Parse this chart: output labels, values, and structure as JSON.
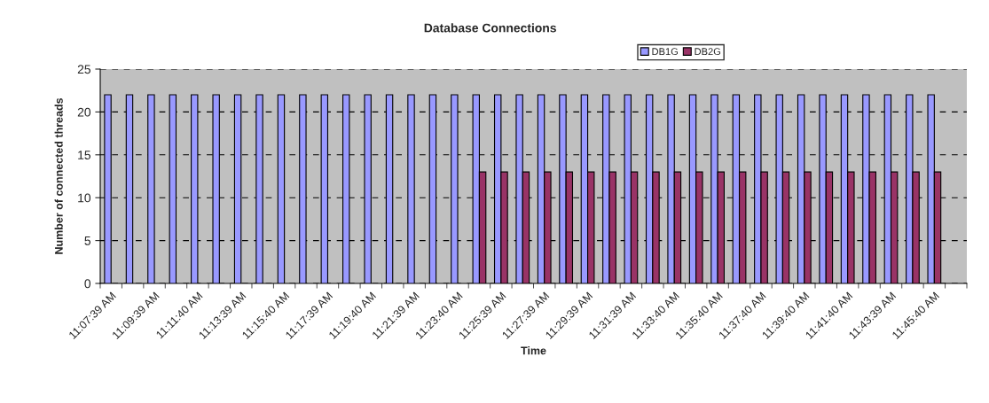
{
  "chart_data": {
    "type": "bar",
    "title": "Database Connections",
    "xlabel": "Time",
    "ylabel": "Number of connected threads",
    "categories": [
      "11:07:39 AM",
      null,
      "11:09:39 AM",
      null,
      "11:11:40 AM",
      null,
      "11:13:39 AM",
      null,
      "11:15:40 AM",
      null,
      "11:17:39 AM",
      null,
      "11:19:40 AM",
      null,
      "11:21:39 AM",
      null,
      "11:23:40 AM",
      null,
      "11:25:39 AM",
      null,
      "11:27:39 AM",
      null,
      "11:29:39 AM",
      null,
      "11:31:39 AM",
      null,
      "11:33:40 AM",
      null,
      "11:35:40 AM",
      null,
      "11:37:40 AM",
      null,
      "11:39:40 AM",
      null,
      "11:41:40 AM",
      null,
      "11:43:39 AM",
      null,
      "11:45:40 AM",
      null
    ],
    "series": [
      {
        "name": "DB1G",
        "color": "#9999ff",
        "values": [
          22,
          22,
          22,
          22,
          22,
          22,
          22,
          22,
          22,
          22,
          22,
          22,
          22,
          22,
          22,
          22,
          22,
          22,
          22,
          22,
          22,
          22,
          22,
          22,
          22,
          22,
          22,
          22,
          22,
          22,
          22,
          22,
          22,
          22,
          22,
          22,
          22,
          22,
          22,
          null
        ]
      },
      {
        "name": "DB2G",
        "color": "#993366",
        "values": [
          null,
          null,
          null,
          null,
          null,
          null,
          null,
          null,
          null,
          null,
          null,
          null,
          null,
          null,
          null,
          null,
          null,
          13,
          13,
          13,
          13,
          13,
          13,
          13,
          13,
          13,
          13,
          13,
          13,
          13,
          13,
          13,
          13,
          13,
          13,
          13,
          13,
          13,
          13,
          null
        ]
      }
    ],
    "ylim": [
      0,
      25
    ],
    "yticks": [
      0,
      5,
      10,
      15,
      20,
      25
    ],
    "grid": "y",
    "legend": "top"
  }
}
